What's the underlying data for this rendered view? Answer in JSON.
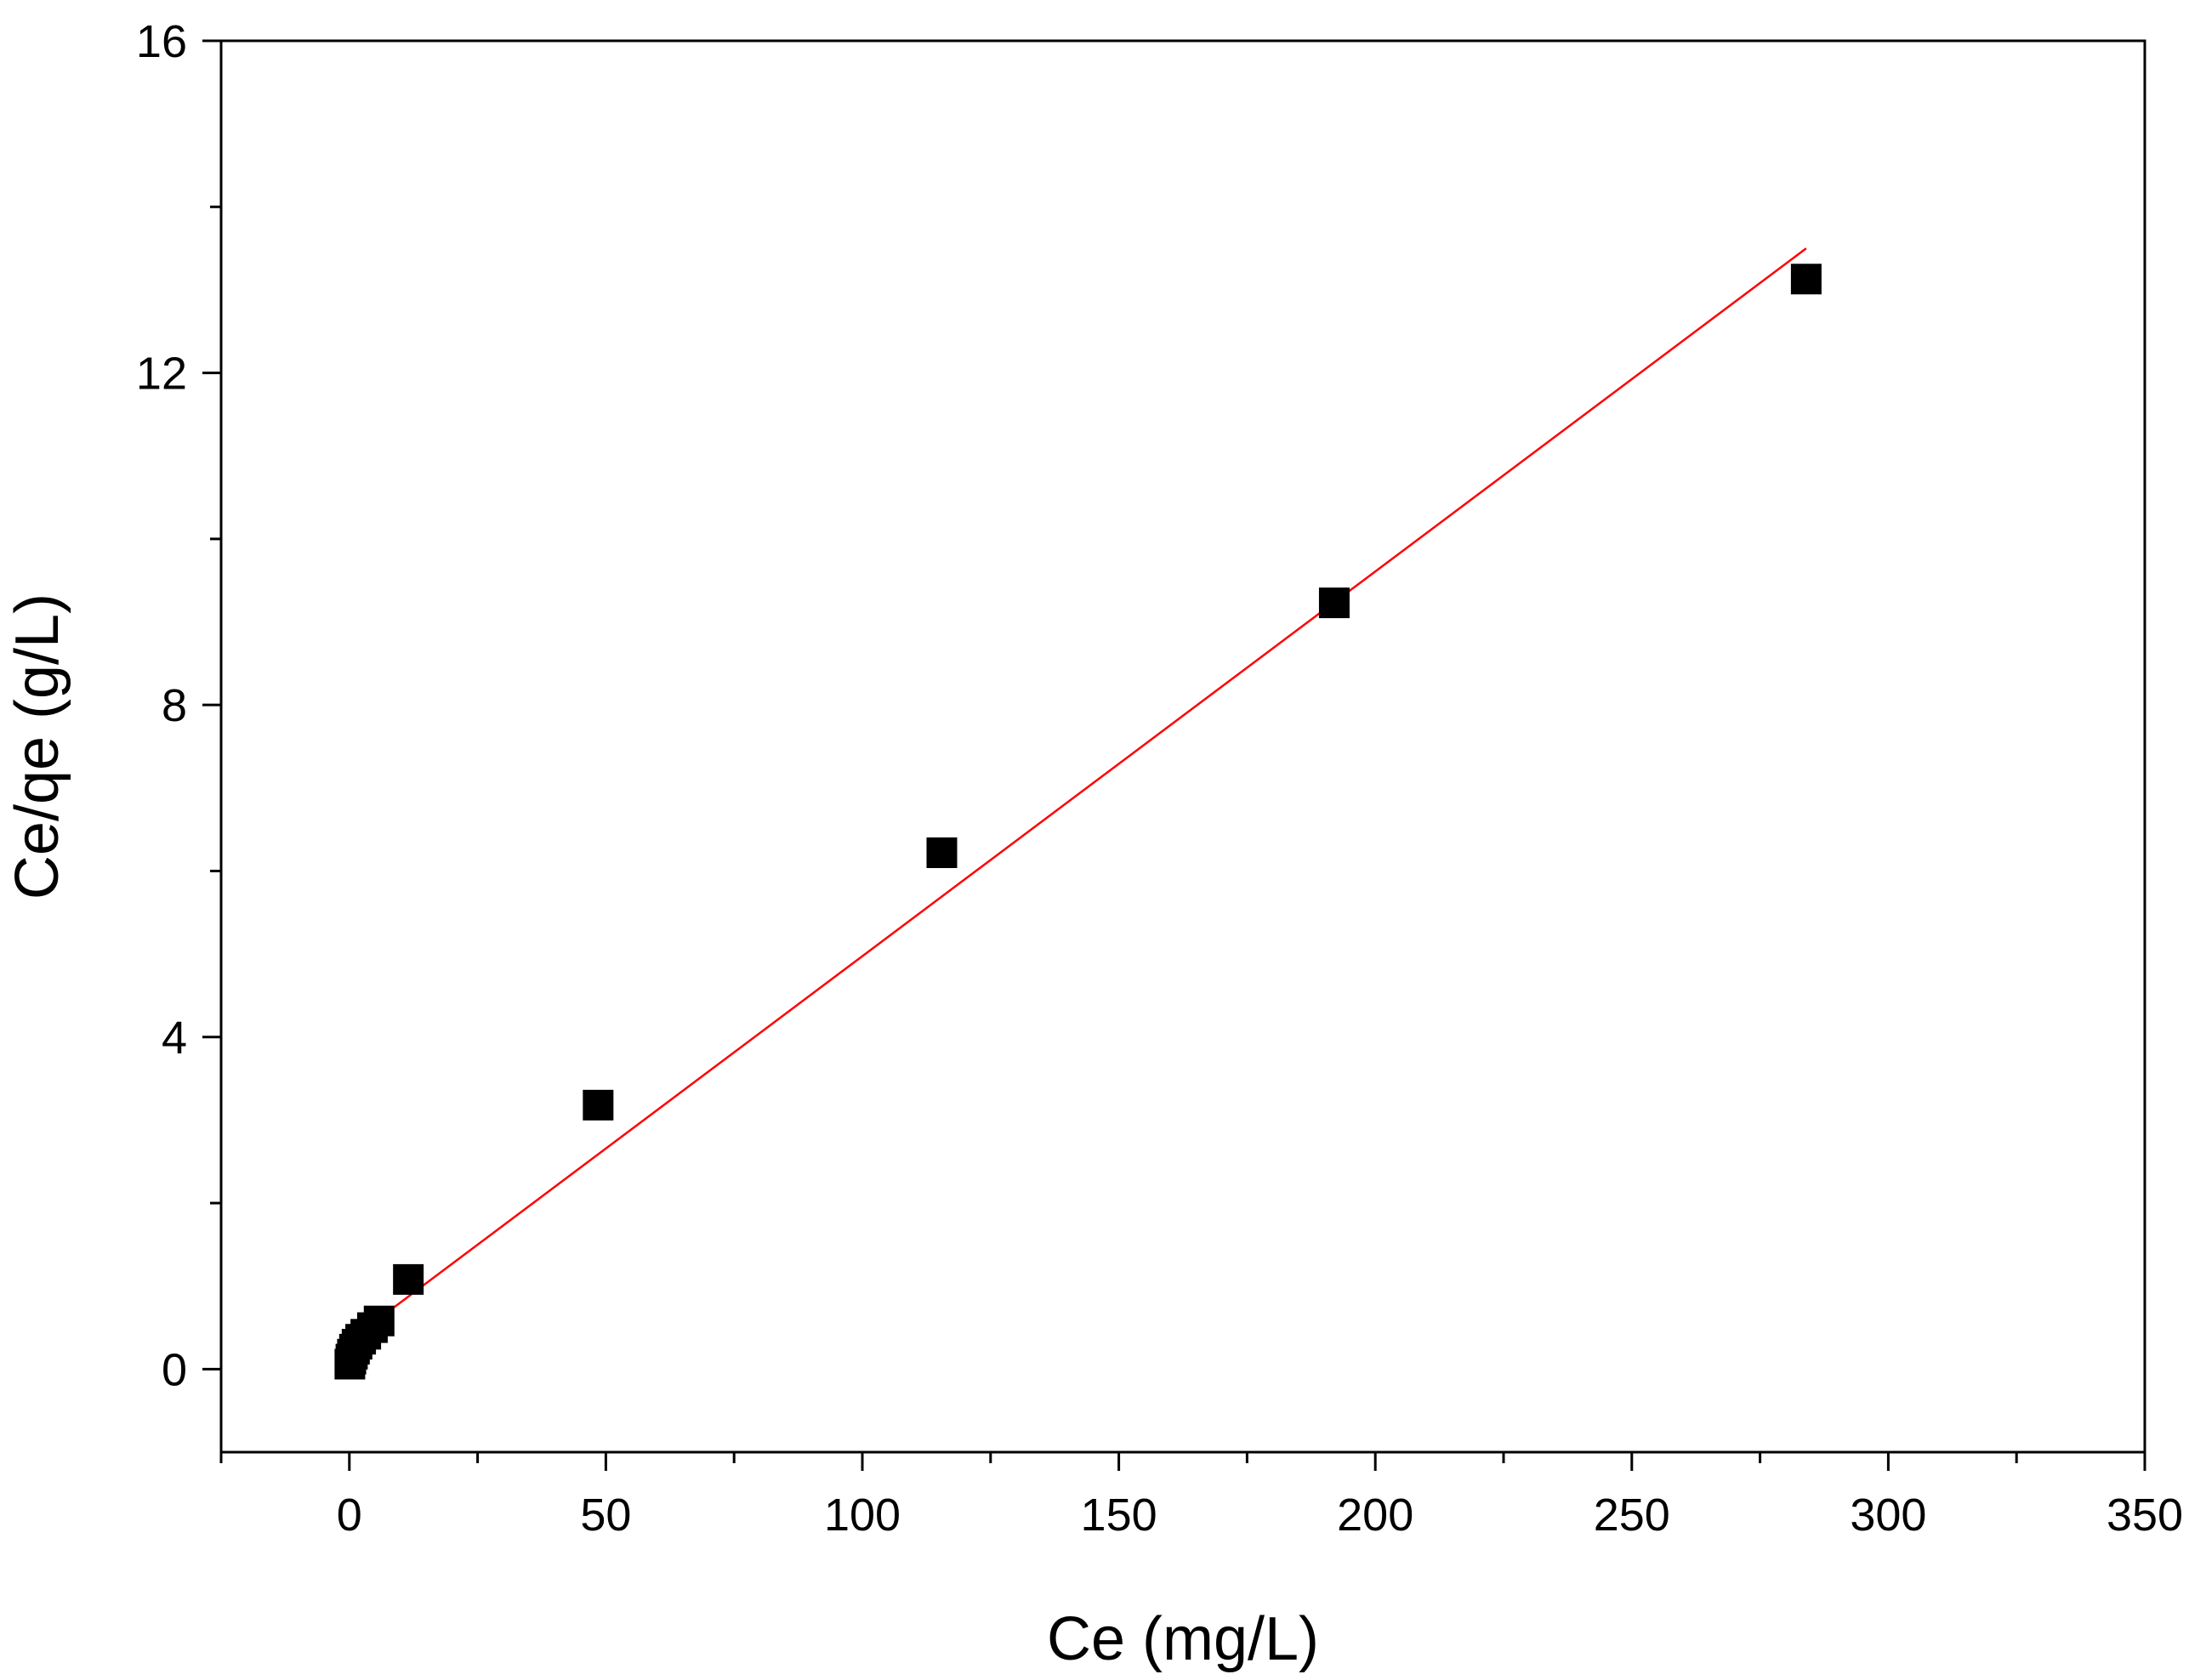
{
  "chart_data": {
    "type": "scatter",
    "title": "",
    "xlabel": "Ce (mg/L)",
    "ylabel": "Ce/qe (g/L)",
    "xlim": [
      -25,
      350
    ],
    "ylim": [
      -1,
      16
    ],
    "x_ticks": [
      0,
      50,
      100,
      150,
      200,
      250,
      300,
      350
    ],
    "x_minor_ticks": [
      -25,
      25,
      75,
      125,
      175,
      225,
      275,
      325
    ],
    "y_ticks": [
      0,
      4,
      8,
      12,
      16
    ],
    "y_minor_ticks": [
      2,
      6,
      10,
      14
    ],
    "grid": false,
    "legend": "none",
    "series": [
      {
        "marker": "square",
        "color": "#000000",
        "x": [
          0.1,
          0.3,
          0.6,
          1.0,
          1.5,
          2.2,
          3.2,
          4.5,
          5.8,
          11.5,
          48.5,
          115.5,
          192.0,
          284.0
        ],
        "y": [
          0.06,
          0.12,
          0.18,
          0.24,
          0.3,
          0.36,
          0.42,
          0.5,
          0.58,
          1.08,
          3.18,
          6.22,
          9.23,
          13.13
        ]
      }
    ],
    "fit_line": {
      "color": "#ff0000",
      "x": [
        0.2,
        284.0
      ],
      "y": [
        0.35,
        13.5
      ]
    }
  }
}
